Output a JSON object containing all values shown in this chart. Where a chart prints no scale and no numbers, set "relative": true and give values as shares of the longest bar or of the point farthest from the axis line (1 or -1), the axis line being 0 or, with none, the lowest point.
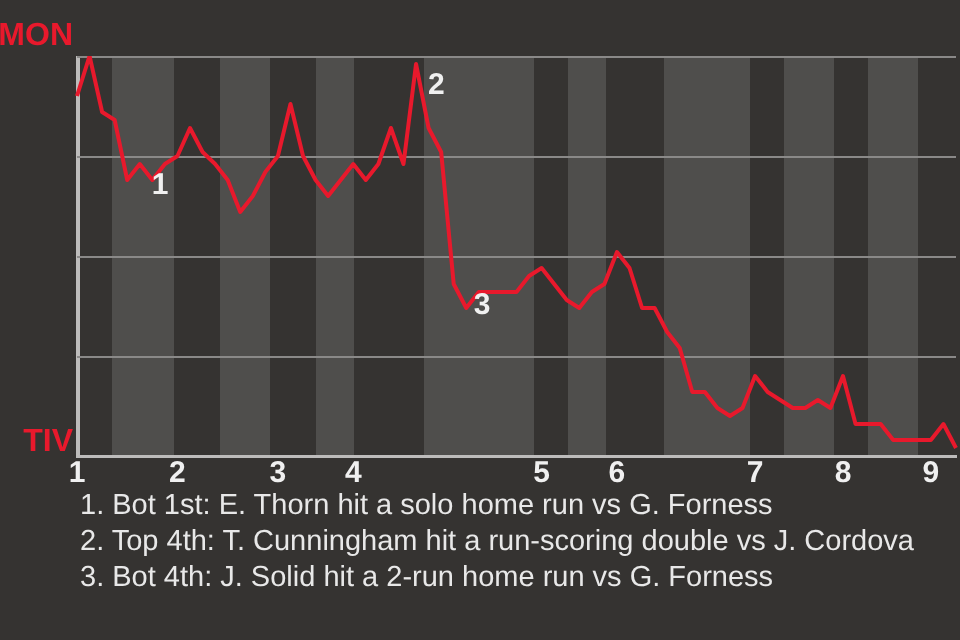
{
  "chart_data": {
    "type": "line",
    "relative": true,
    "categories": [
      "1",
      null,
      null,
      null,
      null,
      null,
      null,
      null,
      "2",
      null,
      null,
      null,
      null,
      null,
      null,
      null,
      "3",
      null,
      null,
      null,
      null,
      null,
      "4",
      null,
      null,
      null,
      null,
      null,
      null,
      null,
      null,
      null,
      null,
      null,
      null,
      null,
      null,
      "5",
      null,
      null,
      null,
      null,
      null,
      "6",
      null,
      null,
      null,
      null,
      null,
      null,
      null,
      null,
      null,
      null,
      "7",
      null,
      null,
      null,
      null,
      null,
      null,
      "8",
      null,
      null,
      null,
      null,
      null,
      null,
      "9",
      null,
      null
    ],
    "series": [
      {
        "color": "#e8192c",
        "values": [
          0.9,
          1,
          0.86,
          0.84,
          0.69,
          0.73,
          0.69,
          0.73,
          0.75,
          0.82,
          0.76,
          0.73,
          0.69,
          0.61,
          0.65,
          0.71,
          0.75,
          0.88,
          0.75,
          0.69,
          0.65,
          0.69,
          0.73,
          0.69,
          0.73,
          0.82,
          0.73,
          0.98,
          0.82,
          0.76,
          0.43,
          0.37,
          0.41,
          0.41,
          0.41,
          0.41,
          0.45,
          0.47,
          0.43,
          0.39,
          0.37,
          0.41,
          0.43,
          0.51,
          0.47,
          0.37,
          0.37,
          0.31,
          0.27,
          0.16,
          0.16,
          0.12,
          0.1,
          0.12,
          0.2,
          0.16,
          0.14,
          0.12,
          0.12,
          0.14,
          0.12,
          0.2,
          0.08,
          0.08,
          0.08,
          0.04,
          0.04,
          0.04,
          0.04,
          0.08,
          0.02
        ]
      }
    ],
    "grid": "y",
    "legend": false,
    "marker": "none",
    "line_style": "solid",
    "annotations": [
      "MON",
      "TIV",
      "1",
      "2",
      "3",
      "1. Bot 1st: E. Thorn hit a solo home run vs G. Forness",
      "2. Top 4th: T. Cunningham hit a run-scoring double vs J. Cordova",
      "3. Bot 4th: J. Solid hit a 2-run home run vs G. Forness"
    ]
  }
}
